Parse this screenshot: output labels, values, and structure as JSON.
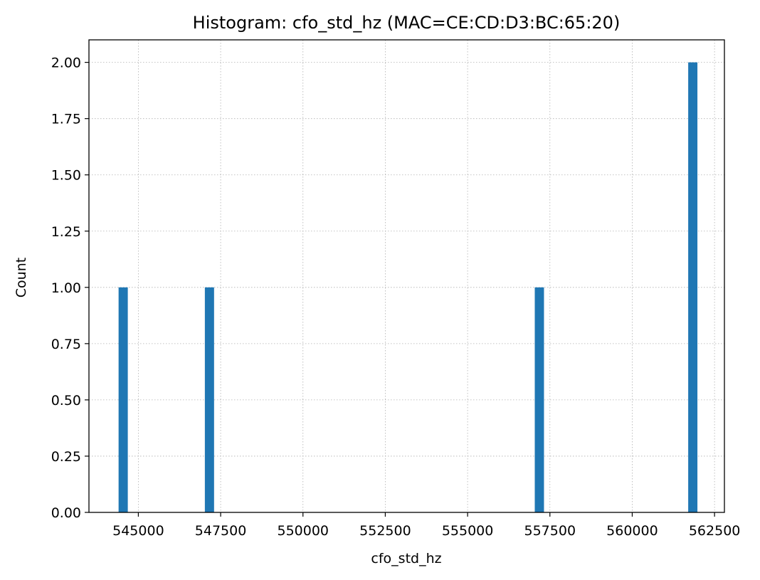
{
  "chart_data": {
    "type": "bar",
    "title": "Histogram: cfo_std_hz (MAC=CE:CD:D3:BC:65:20)",
    "xlabel": "cfo_std_hz",
    "ylabel": "Count",
    "xlim": [
      543500,
      562800
    ],
    "ylim": [
      0,
      2.1
    ],
    "x_ticks": [
      545000,
      547500,
      550000,
      552500,
      555000,
      557500,
      560000,
      562500
    ],
    "x_tick_labels": [
      "545000",
      "547500",
      "550000",
      "552500",
      "555000",
      "557500",
      "560000",
      "562500"
    ],
    "y_ticks": [
      0,
      0.25,
      0.5,
      0.75,
      1.0,
      1.25,
      1.5,
      1.75,
      2.0
    ],
    "y_tick_labels": [
      "0.00",
      "0.25",
      "0.50",
      "0.75",
      "1.00",
      "1.25",
      "1.50",
      "1.75",
      "2.00"
    ],
    "grid": true,
    "bar_color": "#1f77b4",
    "bins": [
      {
        "start": 544400,
        "end": 544680,
        "count": 1
      },
      {
        "start": 547020,
        "end": 547300,
        "count": 1
      },
      {
        "start": 557040,
        "end": 557320,
        "count": 1
      },
      {
        "start": 561700,
        "end": 561980,
        "count": 2
      }
    ]
  }
}
